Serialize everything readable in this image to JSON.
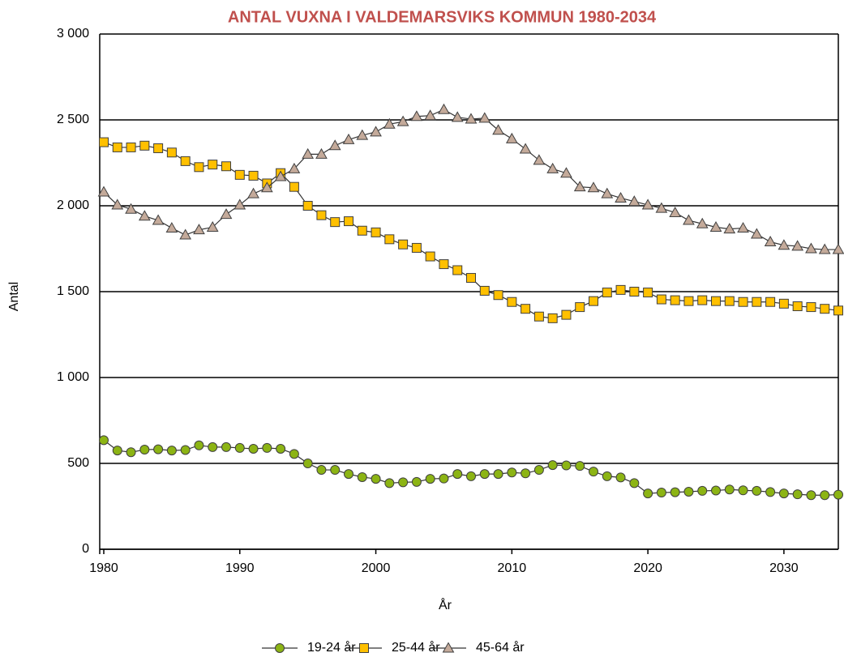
{
  "chart_data": {
    "type": "line",
    "title": "ANTAL VUXNA I VALDEMARSVIKS KOMMUN 1980-2034",
    "x_label": "År",
    "y_label": "Antal",
    "x": [
      1980,
      1981,
      1982,
      1983,
      1984,
      1985,
      1986,
      1987,
      1988,
      1989,
      1990,
      1991,
      1992,
      1993,
      1994,
      1995,
      1996,
      1997,
      1998,
      1999,
      2000,
      2001,
      2002,
      2003,
      2004,
      2005,
      2006,
      2007,
      2008,
      2009,
      2010,
      2011,
      2012,
      2013,
      2014,
      2015,
      2016,
      2017,
      2018,
      2019,
      2020,
      2021,
      2022,
      2023,
      2024,
      2025,
      2026,
      2027,
      2028,
      2029,
      2030,
      2031,
      2032,
      2033,
      2034
    ],
    "series": [
      {
        "name": "19-24 år",
        "color": "#8cb414",
        "marker": "circle",
        "values": [
          635,
          575,
          565,
          580,
          582,
          575,
          578,
          605,
          595,
          595,
          590,
          585,
          590,
          585,
          555,
          500,
          462,
          462,
          438,
          420,
          410,
          385,
          390,
          392,
          410,
          412,
          438,
          425,
          438,
          438,
          447,
          442,
          462,
          490,
          488,
          485,
          452,
          425,
          418,
          385,
          325,
          330,
          332,
          335,
          340,
          342,
          348,
          343,
          340,
          333,
          325,
          320,
          315,
          315,
          318
        ]
      },
      {
        "name": "25-44 år",
        "color": "#ffc000",
        "marker": "square",
        "values": [
          2370,
          2340,
          2340,
          2350,
          2335,
          2310,
          2260,
          2225,
          2240,
          2230,
          2180,
          2175,
          2130,
          2190,
          2110,
          2000,
          1945,
          1905,
          1910,
          1855,
          1845,
          1805,
          1775,
          1755,
          1705,
          1660,
          1625,
          1580,
          1505,
          1480,
          1440,
          1400,
          1355,
          1345,
          1365,
          1410,
          1445,
          1495,
          1510,
          1500,
          1495,
          1455,
          1450,
          1445,
          1450,
          1445,
          1445,
          1440,
          1440,
          1440,
          1430,
          1415,
          1410,
          1400,
          1390
        ]
      },
      {
        "name": "45-64 år",
        "color": "#c4aa9a",
        "marker": "triangle",
        "values": [
          2080,
          2005,
          1980,
          1940,
          1915,
          1870,
          1830,
          1860,
          1875,
          1950,
          2005,
          2070,
          2105,
          2170,
          2215,
          2300,
          2300,
          2350,
          2385,
          2410,
          2430,
          2475,
          2490,
          2520,
          2525,
          2560,
          2515,
          2505,
          2510,
          2440,
          2390,
          2330,
          2265,
          2215,
          2190,
          2110,
          2105,
          2070,
          2045,
          2025,
          2005,
          1985,
          1960,
          1915,
          1895,
          1875,
          1865,
          1870,
          1835,
          1790,
          1770,
          1765,
          1750,
          1745,
          1745
        ]
      }
    ],
    "xlim": [
      1980,
      2034
    ],
    "xticks": [
      1980,
      1990,
      2000,
      2010,
      2020,
      2030
    ],
    "ylim": [
      0,
      3000
    ],
    "yticks": [
      0,
      500,
      {
        "value": 1000,
        "label": "1 000"
      },
      {
        "value": 1500,
        "label": "1 500"
      },
      {
        "value": 2000,
        "label": "2 000"
      },
      {
        "value": 2500,
        "label": "2 500"
      },
      {
        "value": 3000,
        "label": "3 000"
      }
    ],
    "grid": true,
    "legend": "bottom"
  }
}
